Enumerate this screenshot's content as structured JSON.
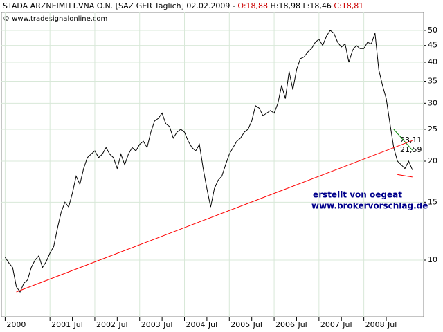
{
  "chart_data": {
    "type": "line",
    "title_parts": [
      {
        "text": "STADA ARZNEIMITT.VNA O.N. [SAZ GER  Täglich] 02.02.2009 - ",
        "color": "#000000"
      },
      {
        "text": "O:18,88",
        "color": "#cc0000"
      },
      {
        "text": " H:18,98 L:18,46 ",
        "color": "#000000"
      },
      {
        "text": "C:18,81",
        "color": "#cc0000"
      }
    ],
    "subtitle": "© www.tradesignalonline.com",
    "annotations": [
      "erstellt von oegeat",
      "www.brokervorschlag.de"
    ],
    "log_scale": true,
    "grid": true,
    "xlim": [
      "1999-12",
      "2009-05"
    ],
    "xticks": [
      {
        "value": "2000-01",
        "label": "2000"
      },
      {
        "value": "2001-01",
        "label": "2001"
      },
      {
        "value": "2001-07",
        "label": "Jul"
      },
      {
        "value": "2002-01",
        "label": "2002"
      },
      {
        "value": "2002-07",
        "label": "Jul"
      },
      {
        "value": "2003-01",
        "label": "2003"
      },
      {
        "value": "2003-07",
        "label": "Jul"
      },
      {
        "value": "2004-01",
        "label": "2004"
      },
      {
        "value": "2004-07",
        "label": "Jul"
      },
      {
        "value": "2005-01",
        "label": "2005"
      },
      {
        "value": "2005-07",
        "label": "Jul"
      },
      {
        "value": "2006-01",
        "label": "2006"
      },
      {
        "value": "2006-07",
        "label": "Jul"
      },
      {
        "value": "2007-01",
        "label": "2007"
      },
      {
        "value": "2007-07",
        "label": "Jul"
      },
      {
        "value": "2008-01",
        "label": "2008"
      },
      {
        "value": "2008-07",
        "label": "Jul"
      }
    ],
    "ylim": [
      6.72,
      56.7
    ],
    "yticks": [
      10,
      15,
      20,
      25,
      30,
      35,
      40,
      45,
      50
    ],
    "x": [
      "2000-01",
      "2000-02",
      "2000-03",
      "2000-04",
      "2000-05",
      "2000-06",
      "2000-07",
      "2000-08",
      "2000-09",
      "2000-10",
      "2000-11",
      "2000-12",
      "2001-01",
      "2001-02",
      "2001-03",
      "2001-04",
      "2001-05",
      "2001-06",
      "2001-07",
      "2001-08",
      "2001-09",
      "2001-10",
      "2001-11",
      "2001-12",
      "2002-01",
      "2002-02",
      "2002-03",
      "2002-04",
      "2002-05",
      "2002-06",
      "2002-07",
      "2002-08",
      "2002-09",
      "2002-10",
      "2002-11",
      "2002-12",
      "2003-01",
      "2003-02",
      "2003-03",
      "2003-04",
      "2003-05",
      "2003-06",
      "2003-07",
      "2003-08",
      "2003-09",
      "2003-10",
      "2003-11",
      "2003-12",
      "2004-01",
      "2004-02",
      "2004-03",
      "2004-04",
      "2004-05",
      "2004-06",
      "2004-07",
      "2004-08",
      "2004-09",
      "2004-10",
      "2004-11",
      "2004-12",
      "2005-01",
      "2005-02",
      "2005-03",
      "2005-04",
      "2005-05",
      "2005-06",
      "2005-07",
      "2005-08",
      "2005-09",
      "2005-10",
      "2005-11",
      "2005-12",
      "2006-01",
      "2006-02",
      "2006-03",
      "2006-04",
      "2006-05",
      "2006-06",
      "2006-07",
      "2006-08",
      "2006-09",
      "2006-10",
      "2006-11",
      "2006-12",
      "2007-01",
      "2007-02",
      "2007-03",
      "2007-04",
      "2007-05",
      "2007-06",
      "2007-07",
      "2007-08",
      "2007-09",
      "2007-10",
      "2007-11",
      "2007-12",
      "2008-01",
      "2008-02",
      "2008-03",
      "2008-04",
      "2008-05",
      "2008-06",
      "2008-07",
      "2008-08",
      "2008-09",
      "2008-10",
      "2008-11",
      "2008-12",
      "2009-01",
      "2009-02"
    ],
    "series": [
      {
        "color": "#000000",
        "values": [
          10.2,
          9.8,
          9.5,
          8.3,
          8.0,
          8.5,
          8.7,
          9.5,
          10.0,
          10.3,
          9.5,
          9.9,
          10.5,
          11.0,
          12.5,
          14.0,
          15.0,
          14.5,
          16.0,
          18.0,
          17.0,
          19.0,
          20.5,
          21.0,
          21.5,
          20.5,
          21.0,
          22.0,
          21.0,
          20.5,
          19.0,
          21.0,
          19.5,
          21.0,
          22.0,
          21.5,
          22.5,
          23.0,
          22.0,
          24.5,
          26.5,
          27.0,
          28.0,
          26.0,
          25.5,
          23.5,
          24.5,
          25.0,
          24.5,
          23.0,
          22.0,
          21.5,
          22.5,
          19.0,
          16.5,
          14.5,
          16.5,
          17.5,
          18.0,
          19.5,
          21.0,
          22.0,
          23.0,
          23.5,
          24.5,
          25.0,
          26.5,
          29.5,
          29.0,
          27.5,
          28.0,
          28.5,
          28.0,
          30.0,
          34.0,
          31.0,
          37.5,
          33.0,
          38.0,
          41.0,
          41.5,
          43.0,
          44.0,
          46.0,
          47.0,
          45.0,
          48.0,
          50.0,
          49.0,
          46.0,
          44.5,
          45.5,
          40.0,
          43.5,
          45.0,
          44.0,
          44.0,
          46.0,
          45.5,
          49.0,
          38.0,
          34.0,
          31.0,
          26.0,
          22.0,
          20.0,
          19.5,
          19.0,
          20.0,
          18.81
        ]
      }
    ],
    "lines": [
      {
        "color": "#ff0000",
        "x": [
          "2000-04",
          "2009-02"
        ],
        "values": [
          8.0,
          23.11
        ],
        "value_labels": [
          null,
          "23,11"
        ]
      },
      {
        "color": "#008000",
        "x": [
          "2008-09",
          "2009-02"
        ],
        "values": [
          25.0,
          21.59
        ],
        "value_labels": [
          null,
          "21,59"
        ]
      },
      {
        "color": "#ff0000",
        "x": [
          "2008-10",
          "2009-02"
        ],
        "values": [
          18.2,
          17.9
        ]
      }
    ]
  }
}
